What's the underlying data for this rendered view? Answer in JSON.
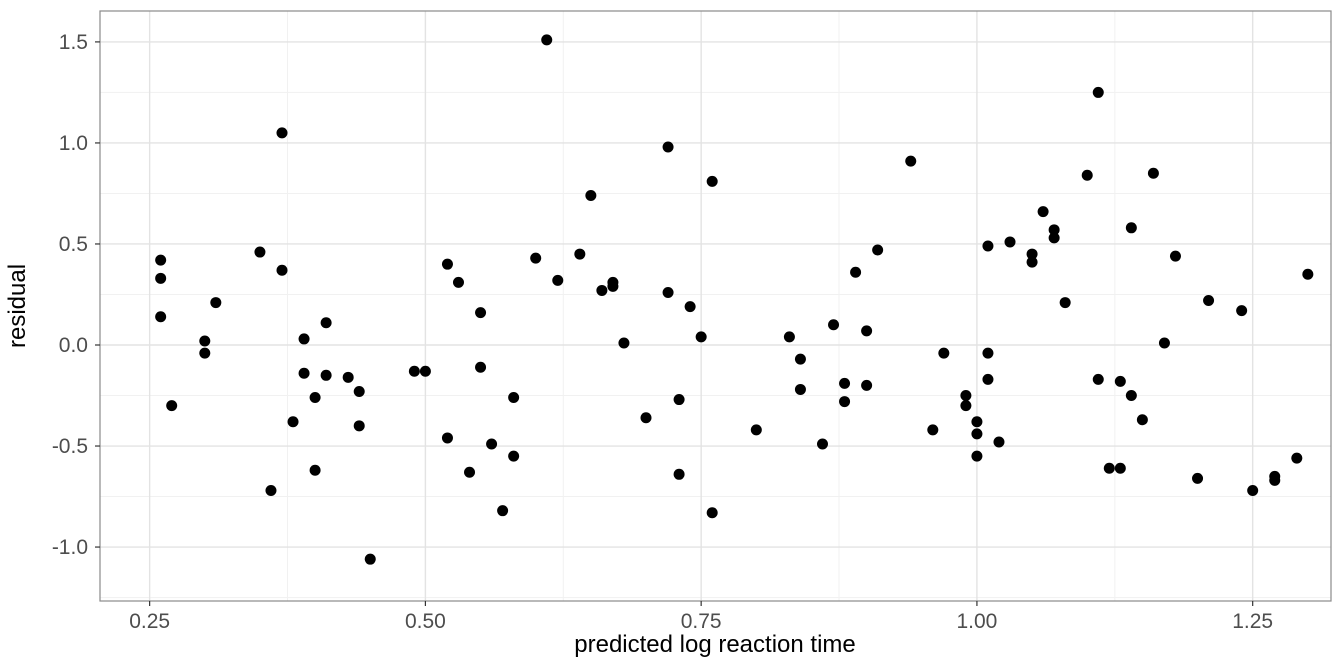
{
  "chart_data": {
    "type": "scatter",
    "title": "",
    "xlabel": "predicted log reaction time",
    "ylabel": "residual",
    "xlim": [
      0.205,
      1.321
    ],
    "ylim": [
      -1.267,
      1.653
    ],
    "x_ticks": [
      0.25,
      0.5,
      0.75,
      1.0,
      1.25
    ],
    "x_tick_labels": [
      "0.25",
      "0.50",
      "0.75",
      "1.00",
      "1.25"
    ],
    "y_ticks": [
      -1.0,
      -0.5,
      0.0,
      0.5,
      1.0,
      1.5
    ],
    "y_tick_labels": [
      "-1.0",
      "-0.5",
      "0.0",
      "0.5",
      "1.0",
      "1.5"
    ],
    "x_minor_ticks": [
      0.375,
      0.625,
      0.875,
      1.125
    ],
    "y_minor_ticks": [
      -1.25,
      -0.75,
      -0.25,
      0.25,
      0.75,
      1.25
    ],
    "grid": true,
    "legend": "none",
    "point_color": "#000000",
    "point_radius": 5.5,
    "points": [
      [
        0.26,
        0.42
      ],
      [
        0.26,
        0.33
      ],
      [
        0.26,
        0.14
      ],
      [
        0.27,
        -0.3
      ],
      [
        0.3,
        0.02
      ],
      [
        0.3,
        -0.04
      ],
      [
        0.31,
        0.21
      ],
      [
        0.35,
        0.46
      ],
      [
        0.36,
        -0.72
      ],
      [
        0.37,
        1.05
      ],
      [
        0.37,
        0.37
      ],
      [
        0.38,
        -0.38
      ],
      [
        0.39,
        0.03
      ],
      [
        0.39,
        -0.14
      ],
      [
        0.4,
        -0.26
      ],
      [
        0.4,
        -0.62
      ],
      [
        0.41,
        0.11
      ],
      [
        0.41,
        -0.15
      ],
      [
        0.43,
        -0.16
      ],
      [
        0.44,
        -0.23
      ],
      [
        0.44,
        -0.4
      ],
      [
        0.45,
        -1.06
      ],
      [
        0.49,
        -0.13
      ],
      [
        0.5,
        -0.13
      ],
      [
        0.52,
        0.4
      ],
      [
        0.52,
        -0.46
      ],
      [
        0.53,
        0.31
      ],
      [
        0.54,
        -0.63
      ],
      [
        0.55,
        0.16
      ],
      [
        0.55,
        -0.11
      ],
      [
        0.56,
        -0.49
      ],
      [
        0.57,
        -0.82
      ],
      [
        0.58,
        -0.55
      ],
      [
        0.58,
        -0.26
      ],
      [
        0.6,
        0.43
      ],
      [
        0.61,
        1.51
      ],
      [
        0.62,
        0.32
      ],
      [
        0.64,
        0.45
      ],
      [
        0.65,
        0.74
      ],
      [
        0.66,
        0.27
      ],
      [
        0.67,
        0.31
      ],
      [
        0.67,
        0.29
      ],
      [
        0.68,
        0.01
      ],
      [
        0.7,
        -0.36
      ],
      [
        0.72,
        0.98
      ],
      [
        0.72,
        0.26
      ],
      [
        0.73,
        -0.27
      ],
      [
        0.73,
        -0.64
      ],
      [
        0.74,
        0.19
      ],
      [
        0.75,
        0.04
      ],
      [
        0.76,
        0.81
      ],
      [
        0.76,
        -0.83
      ],
      [
        0.8,
        -0.42
      ],
      [
        0.83,
        0.04
      ],
      [
        0.84,
        -0.07
      ],
      [
        0.84,
        -0.22
      ],
      [
        0.86,
        -0.49
      ],
      [
        0.87,
        0.1
      ],
      [
        0.88,
        -0.19
      ],
      [
        0.88,
        -0.28
      ],
      [
        0.89,
        0.36
      ],
      [
        0.9,
        -0.2
      ],
      [
        0.9,
        0.07
      ],
      [
        0.91,
        0.47
      ],
      [
        0.94,
        0.91
      ],
      [
        0.96,
        -0.42
      ],
      [
        0.97,
        -0.04
      ],
      [
        0.99,
        -0.25
      ],
      [
        0.99,
        -0.3
      ],
      [
        1.0,
        -0.55
      ],
      [
        1.0,
        -0.44
      ],
      [
        1.0,
        -0.38
      ],
      [
        1.01,
        -0.04
      ],
      [
        1.01,
        -0.17
      ],
      [
        1.01,
        0.49
      ],
      [
        1.02,
        -0.48
      ],
      [
        1.03,
        0.51
      ],
      [
        1.05,
        0.45
      ],
      [
        1.05,
        0.41
      ],
      [
        1.06,
        0.66
      ],
      [
        1.07,
        0.57
      ],
      [
        1.07,
        0.53
      ],
      [
        1.08,
        0.21
      ],
      [
        1.1,
        0.84
      ],
      [
        1.11,
        1.25
      ],
      [
        1.11,
        -0.17
      ],
      [
        1.12,
        -0.61
      ],
      [
        1.13,
        -0.61
      ],
      [
        1.13,
        -0.18
      ],
      [
        1.14,
        0.58
      ],
      [
        1.14,
        -0.25
      ],
      [
        1.15,
        -0.37
      ],
      [
        1.16,
        0.85
      ],
      [
        1.17,
        0.01
      ],
      [
        1.18,
        0.44
      ],
      [
        1.2,
        -0.66
      ],
      [
        1.21,
        0.22
      ],
      [
        1.24,
        0.17
      ],
      [
        1.25,
        -0.72
      ],
      [
        1.27,
        -0.67
      ],
      [
        1.27,
        -0.65
      ],
      [
        1.29,
        -0.56
      ],
      [
        1.3,
        0.35
      ]
    ]
  },
  "colors": {
    "panel_background": "#ffffff",
    "panel_border": "#8a8a8a",
    "grid_major": "#e3e3e3",
    "grid_minor": "#f1f1f1",
    "tick_mark": "#333333",
    "tick_label": "#4d4d4d",
    "axis_title": "#000000",
    "point": "#000000"
  }
}
